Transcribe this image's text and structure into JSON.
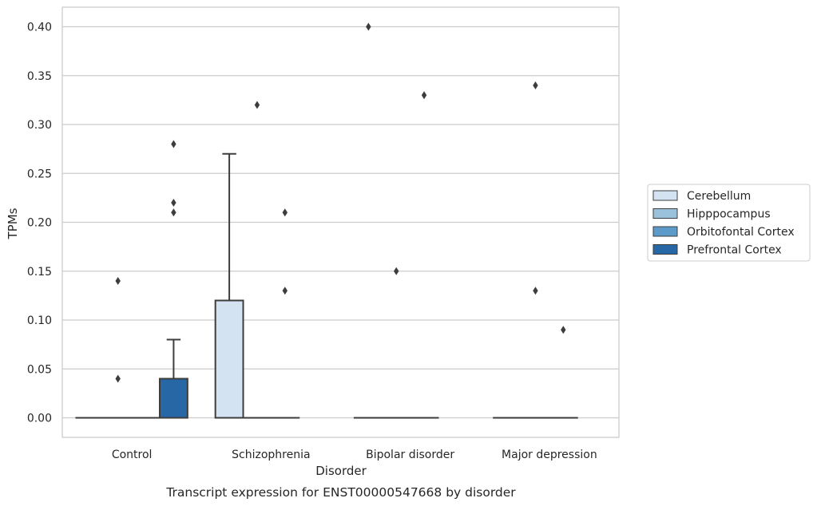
{
  "caption": "Transcript expression for ENST00000547668 by disorder",
  "chart_data": {
    "type": "box",
    "title": "",
    "xlabel": "Disorder",
    "ylabel": "TPMs",
    "ylim": [
      -0.02,
      0.42
    ],
    "yticks": [
      0.0,
      0.05,
      0.1,
      0.15,
      0.2,
      0.25,
      0.3,
      0.35,
      0.4
    ],
    "ytick_labels": [
      "0.00",
      "0.05",
      "0.10",
      "0.15",
      "0.20",
      "0.25",
      "0.30",
      "0.35",
      "0.40"
    ],
    "grid": "horizontal",
    "legend_placement": "right, outside",
    "categories": [
      "Control",
      "Schizophrenia",
      "Bipolar disorder",
      "Major depression"
    ],
    "series": [
      {
        "name": "Cerebellum",
        "color": "#d4e3f2",
        "boxes": [
          {
            "q1": 0,
            "median": 0,
            "q3": 0,
            "whisker_low": 0,
            "whisker_high": 0,
            "outliers": []
          },
          {
            "q1": 0,
            "median": 0,
            "q3": 0.12,
            "whisker_low": 0,
            "whisker_high": 0.27,
            "outliers": []
          },
          {
            "q1": 0,
            "median": 0,
            "q3": 0,
            "whisker_low": 0,
            "whisker_high": 0,
            "outliers": [
              0.4
            ]
          },
          {
            "q1": 0,
            "median": 0,
            "q3": 0,
            "whisker_low": 0,
            "whisker_high": 0,
            "outliers": []
          }
        ]
      },
      {
        "name": "Hipppocampus",
        "color": "#9ac2dc",
        "boxes": [
          {
            "q1": 0,
            "median": 0,
            "q3": 0,
            "whisker_low": 0,
            "whisker_high": 0,
            "outliers": [
              0.04,
              0.14
            ]
          },
          {
            "q1": 0,
            "median": 0,
            "q3": 0,
            "whisker_low": 0,
            "whisker_high": 0,
            "outliers": [
              0.32
            ]
          },
          {
            "q1": 0,
            "median": 0,
            "q3": 0,
            "whisker_low": 0,
            "whisker_high": 0,
            "outliers": [
              0.15
            ]
          },
          {
            "q1": 0,
            "median": 0,
            "q3": 0,
            "whisker_low": 0,
            "whisker_high": 0,
            "outliers": [
              0.13,
              0.34
            ]
          }
        ]
      },
      {
        "name": "Orbitofontal Cortex",
        "color": "#5b9ac9",
        "boxes": [
          {
            "q1": 0,
            "median": 0,
            "q3": 0,
            "whisker_low": 0,
            "whisker_high": 0,
            "outliers": []
          },
          {
            "q1": 0,
            "median": 0,
            "q3": 0,
            "whisker_low": 0,
            "whisker_high": 0,
            "outliers": [
              0.13,
              0.21
            ]
          },
          {
            "q1": 0,
            "median": 0,
            "q3": 0,
            "whisker_low": 0,
            "whisker_high": 0,
            "outliers": [
              0.33
            ]
          },
          {
            "q1": 0,
            "median": 0,
            "q3": 0,
            "whisker_low": 0,
            "whisker_high": 0,
            "outliers": [
              0.09
            ]
          }
        ]
      },
      {
        "name": "Prefrontal Cortex",
        "color": "#2867a6",
        "boxes": [
          {
            "q1": 0,
            "median": 0,
            "q3": 0.04,
            "whisker_low": 0,
            "whisker_high": 0.08,
            "outliers": [
              0.21,
              0.22,
              0.28
            ]
          },
          null,
          null,
          null
        ]
      }
    ]
  }
}
